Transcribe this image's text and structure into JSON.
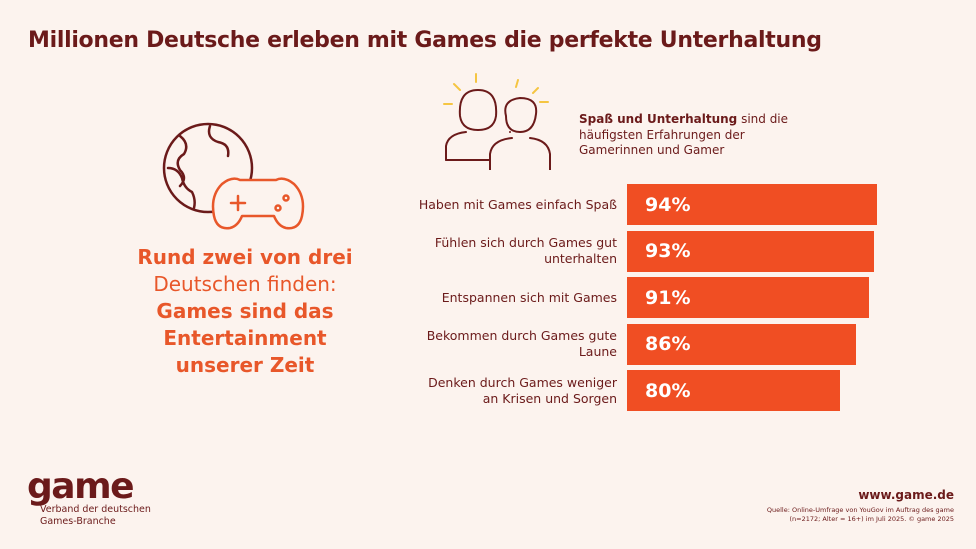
{
  "title": "Millionen Deutsche erleben mit Games die perfekte Unterhaltung",
  "headline": [
    {
      "text": "Rund zwei von drei",
      "bold": true
    },
    {
      "text": "Deutschen finden:",
      "bold": false
    },
    {
      "text": "Games sind das",
      "bold": true
    },
    {
      "text": "Entertainment",
      "bold": true
    },
    {
      "text": "unserer Zeit",
      "bold": true
    }
  ],
  "description": [
    {
      "text": "Spaß und Unterhaltung",
      "bold": true
    },
    {
      "text": " sind die häufigsten Erfahrungen der Gamerinnen und Gamer",
      "bold": false
    }
  ],
  "chart_data": {
    "type": "hbar",
    "categories": [
      "Haben mit Games einfach Spaß",
      "Fühlen sich durch Games gut unterhalten",
      "Entspannen sich mit Games",
      "Bekommen durch Games gute Laune",
      "Denken durch Games weniger an Krisen und Sorgen"
    ],
    "values": [
      94,
      93,
      91,
      86,
      80
    ],
    "value_labels": [
      "94%",
      "93%",
      "91%",
      "86%",
      "80%"
    ],
    "color": "#f04e23",
    "xlim": [
      0,
      100
    ]
  },
  "footer": {
    "logo": "game",
    "organization": "Verband der deutschen Games-Branche",
    "url": "www.game.de",
    "source": "Quelle: Online-Umfrage von YouGov im Auftrag des game (n=2172; Alter = 16+) im Juli 2025. © game 2025"
  }
}
